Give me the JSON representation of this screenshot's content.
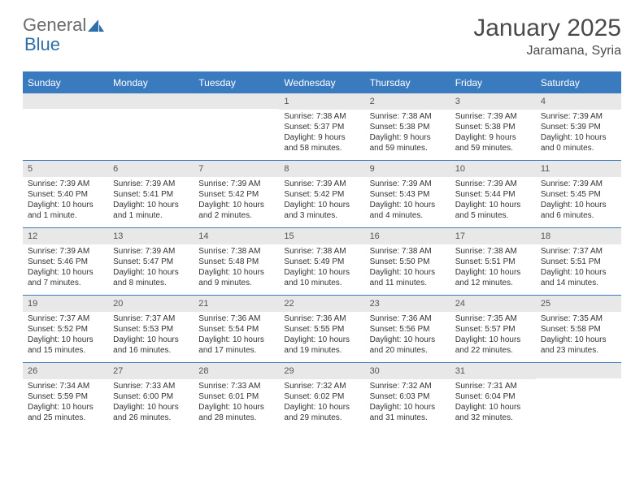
{
  "logo": {
    "part1": "General",
    "part2": "Blue"
  },
  "title": "January 2025",
  "location": "Jaramana, Syria",
  "colors": {
    "brand": "#3a7bbf",
    "header_text": "#ffffff",
    "daynum_bg": "#e8e8e8",
    "text": "#333333",
    "title_text": "#4a4a4a"
  },
  "weekdays": [
    "Sunday",
    "Monday",
    "Tuesday",
    "Wednesday",
    "Thursday",
    "Friday",
    "Saturday"
  ],
  "weeks": [
    [
      {
        "n": "",
        "sunrise": "",
        "sunset": "",
        "daylight": ""
      },
      {
        "n": "",
        "sunrise": "",
        "sunset": "",
        "daylight": ""
      },
      {
        "n": "",
        "sunrise": "",
        "sunset": "",
        "daylight": ""
      },
      {
        "n": "1",
        "sunrise": "Sunrise: 7:38 AM",
        "sunset": "Sunset: 5:37 PM",
        "daylight": "Daylight: 9 hours and 58 minutes."
      },
      {
        "n": "2",
        "sunrise": "Sunrise: 7:38 AM",
        "sunset": "Sunset: 5:38 PM",
        "daylight": "Daylight: 9 hours and 59 minutes."
      },
      {
        "n": "3",
        "sunrise": "Sunrise: 7:39 AM",
        "sunset": "Sunset: 5:38 PM",
        "daylight": "Daylight: 9 hours and 59 minutes."
      },
      {
        "n": "4",
        "sunrise": "Sunrise: 7:39 AM",
        "sunset": "Sunset: 5:39 PM",
        "daylight": "Daylight: 10 hours and 0 minutes."
      }
    ],
    [
      {
        "n": "5",
        "sunrise": "Sunrise: 7:39 AM",
        "sunset": "Sunset: 5:40 PM",
        "daylight": "Daylight: 10 hours and 1 minute."
      },
      {
        "n": "6",
        "sunrise": "Sunrise: 7:39 AM",
        "sunset": "Sunset: 5:41 PM",
        "daylight": "Daylight: 10 hours and 1 minute."
      },
      {
        "n": "7",
        "sunrise": "Sunrise: 7:39 AM",
        "sunset": "Sunset: 5:42 PM",
        "daylight": "Daylight: 10 hours and 2 minutes."
      },
      {
        "n": "8",
        "sunrise": "Sunrise: 7:39 AM",
        "sunset": "Sunset: 5:42 PM",
        "daylight": "Daylight: 10 hours and 3 minutes."
      },
      {
        "n": "9",
        "sunrise": "Sunrise: 7:39 AM",
        "sunset": "Sunset: 5:43 PM",
        "daylight": "Daylight: 10 hours and 4 minutes."
      },
      {
        "n": "10",
        "sunrise": "Sunrise: 7:39 AM",
        "sunset": "Sunset: 5:44 PM",
        "daylight": "Daylight: 10 hours and 5 minutes."
      },
      {
        "n": "11",
        "sunrise": "Sunrise: 7:39 AM",
        "sunset": "Sunset: 5:45 PM",
        "daylight": "Daylight: 10 hours and 6 minutes."
      }
    ],
    [
      {
        "n": "12",
        "sunrise": "Sunrise: 7:39 AM",
        "sunset": "Sunset: 5:46 PM",
        "daylight": "Daylight: 10 hours and 7 minutes."
      },
      {
        "n": "13",
        "sunrise": "Sunrise: 7:39 AM",
        "sunset": "Sunset: 5:47 PM",
        "daylight": "Daylight: 10 hours and 8 minutes."
      },
      {
        "n": "14",
        "sunrise": "Sunrise: 7:38 AM",
        "sunset": "Sunset: 5:48 PM",
        "daylight": "Daylight: 10 hours and 9 minutes."
      },
      {
        "n": "15",
        "sunrise": "Sunrise: 7:38 AM",
        "sunset": "Sunset: 5:49 PM",
        "daylight": "Daylight: 10 hours and 10 minutes."
      },
      {
        "n": "16",
        "sunrise": "Sunrise: 7:38 AM",
        "sunset": "Sunset: 5:50 PM",
        "daylight": "Daylight: 10 hours and 11 minutes."
      },
      {
        "n": "17",
        "sunrise": "Sunrise: 7:38 AM",
        "sunset": "Sunset: 5:51 PM",
        "daylight": "Daylight: 10 hours and 12 minutes."
      },
      {
        "n": "18",
        "sunrise": "Sunrise: 7:37 AM",
        "sunset": "Sunset: 5:51 PM",
        "daylight": "Daylight: 10 hours and 14 minutes."
      }
    ],
    [
      {
        "n": "19",
        "sunrise": "Sunrise: 7:37 AM",
        "sunset": "Sunset: 5:52 PM",
        "daylight": "Daylight: 10 hours and 15 minutes."
      },
      {
        "n": "20",
        "sunrise": "Sunrise: 7:37 AM",
        "sunset": "Sunset: 5:53 PM",
        "daylight": "Daylight: 10 hours and 16 minutes."
      },
      {
        "n": "21",
        "sunrise": "Sunrise: 7:36 AM",
        "sunset": "Sunset: 5:54 PM",
        "daylight": "Daylight: 10 hours and 17 minutes."
      },
      {
        "n": "22",
        "sunrise": "Sunrise: 7:36 AM",
        "sunset": "Sunset: 5:55 PM",
        "daylight": "Daylight: 10 hours and 19 minutes."
      },
      {
        "n": "23",
        "sunrise": "Sunrise: 7:36 AM",
        "sunset": "Sunset: 5:56 PM",
        "daylight": "Daylight: 10 hours and 20 minutes."
      },
      {
        "n": "24",
        "sunrise": "Sunrise: 7:35 AM",
        "sunset": "Sunset: 5:57 PM",
        "daylight": "Daylight: 10 hours and 22 minutes."
      },
      {
        "n": "25",
        "sunrise": "Sunrise: 7:35 AM",
        "sunset": "Sunset: 5:58 PM",
        "daylight": "Daylight: 10 hours and 23 minutes."
      }
    ],
    [
      {
        "n": "26",
        "sunrise": "Sunrise: 7:34 AM",
        "sunset": "Sunset: 5:59 PM",
        "daylight": "Daylight: 10 hours and 25 minutes."
      },
      {
        "n": "27",
        "sunrise": "Sunrise: 7:33 AM",
        "sunset": "Sunset: 6:00 PM",
        "daylight": "Daylight: 10 hours and 26 minutes."
      },
      {
        "n": "28",
        "sunrise": "Sunrise: 7:33 AM",
        "sunset": "Sunset: 6:01 PM",
        "daylight": "Daylight: 10 hours and 28 minutes."
      },
      {
        "n": "29",
        "sunrise": "Sunrise: 7:32 AM",
        "sunset": "Sunset: 6:02 PM",
        "daylight": "Daylight: 10 hours and 29 minutes."
      },
      {
        "n": "30",
        "sunrise": "Sunrise: 7:32 AM",
        "sunset": "Sunset: 6:03 PM",
        "daylight": "Daylight: 10 hours and 31 minutes."
      },
      {
        "n": "31",
        "sunrise": "Sunrise: 7:31 AM",
        "sunset": "Sunset: 6:04 PM",
        "daylight": "Daylight: 10 hours and 32 minutes."
      },
      {
        "n": "",
        "sunrise": "",
        "sunset": "",
        "daylight": ""
      }
    ]
  ]
}
